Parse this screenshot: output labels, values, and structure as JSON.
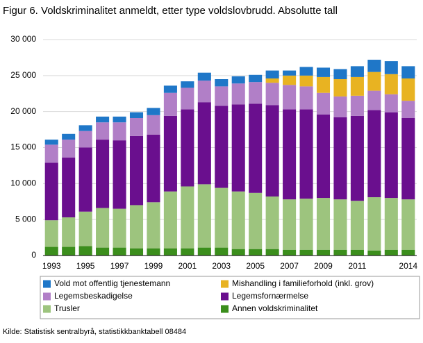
{
  "chart_data": {
    "type": "stacked_bar",
    "title": "Figur 6. Voldskriminalitet anmeldt, etter type voldslovbrudd. Absolutte tall",
    "source": "Kilde: Statistisk sentralbyrå, statistikkbanktabell 08484",
    "categories": [
      "1993",
      null,
      "1995",
      null,
      "1997",
      null,
      "1999",
      null,
      "2001",
      null,
      "2003",
      null,
      "2005",
      null,
      "2007",
      null,
      "2009",
      null,
      "2011",
      null,
      null,
      "2014"
    ],
    "series": [
      {
        "name": "Vold mot offentlig tjenestemann",
        "color": "#1f77c8",
        "values": [
          700,
          800,
          800,
          800,
          800,
          800,
          1000,
          1000,
          900,
          1100,
          1000,
          1000,
          1000,
          1100,
          700,
          1200,
          1300,
          1400,
          1500,
          1700,
          1800,
          1700
        ]
      },
      {
        "name": "Mishandling i familieforhold (inkl. grov)",
        "color": "#e8b322",
        "values": [
          0,
          0,
          0,
          0,
          0,
          0,
          0,
          0,
          0,
          0,
          0,
          0,
          0,
          600,
          1300,
          1500,
          2200,
          2400,
          2600,
          2600,
          2800,
          3100
        ]
      },
      {
        "name": "Legemsbeskadigelse",
        "color": "#b17fc7",
        "values": [
          2500,
          2500,
          2300,
          2400,
          2500,
          2500,
          2700,
          3200,
          3000,
          3000,
          2700,
          2900,
          3000,
          3100,
          3400,
          3200,
          3000,
          2900,
          2800,
          2700,
          2500,
          2400
        ]
      },
      {
        "name": "Legemsfornærmelse",
        "color": "#6a0f8e",
        "values": [
          8000,
          8300,
          8900,
          9500,
          9500,
          9600,
          9400,
          10500,
          10700,
          11400,
          11400,
          12100,
          12400,
          12700,
          12500,
          12400,
          11600,
          11400,
          11800,
          12100,
          11900,
          11300
        ]
      },
      {
        "name": "Trusler",
        "color": "#9dc47e",
        "values": [
          3700,
          4100,
          4800,
          5500,
          5400,
          6000,
          6400,
          7900,
          8600,
          8800,
          8300,
          8000,
          7800,
          7300,
          7000,
          7100,
          7200,
          7000,
          6800,
          7400,
          7200,
          7000
        ]
      },
      {
        "name": "Annen voldskriminalitet",
        "color": "#3b8e1c",
        "values": [
          1200,
          1200,
          1300,
          1100,
          1100,
          1000,
          1000,
          1000,
          1000,
          1100,
          1100,
          900,
          900,
          900,
          800,
          800,
          800,
          800,
          800,
          700,
          800,
          800
        ]
      }
    ],
    "ylim": [
      0,
      30000
    ],
    "yticks": [
      0,
      {
        "value": 5000,
        "label": "5 000"
      },
      {
        "value": 10000,
        "label": "10 000"
      },
      {
        "value": 15000,
        "label": "15 000"
      },
      {
        "value": 20000,
        "label": "20 000"
      },
      {
        "value": 25000,
        "label": "25 000"
      },
      {
        "value": 30000,
        "label": "30 000"
      }
    ],
    "grid": true
  }
}
